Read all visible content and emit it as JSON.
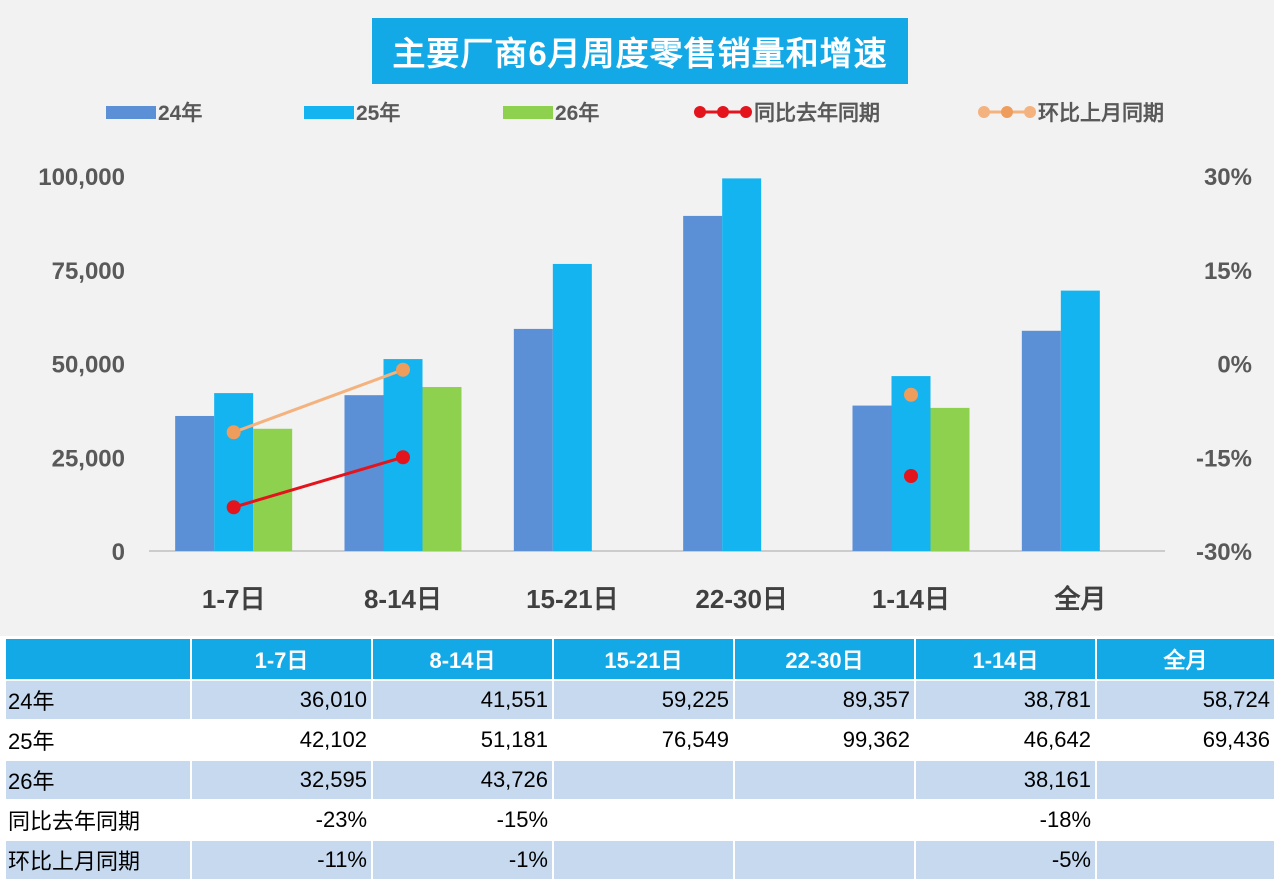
{
  "chart_data": {
    "type": "bar",
    "title": "主要厂商6月周度零售销量和增速",
    "categories": [
      "1-7日",
      "8-14日",
      "15-21日",
      "22-30日",
      "1-14日",
      "全月"
    ],
    "series": [
      {
        "name": "24年",
        "type": "bar",
        "color": "#5b8fd6",
        "values": [
          36010,
          41551,
          59225,
          89357,
          38781,
          58724
        ]
      },
      {
        "name": "25年",
        "type": "bar",
        "color": "#13b4ef",
        "values": [
          42102,
          51181,
          76549,
          99362,
          46642,
          69436
        ]
      },
      {
        "name": "26年",
        "type": "bar",
        "color": "#8dd14f",
        "values": [
          32595,
          43726,
          null,
          null,
          38161,
          null
        ]
      },
      {
        "name": "同比去年同期",
        "type": "line",
        "axis": "right",
        "color": "#e3141c",
        "values": [
          -0.23,
          -0.15,
          null,
          null,
          -0.18,
          null
        ]
      },
      {
        "name": "环比上月同期",
        "type": "line",
        "axis": "right",
        "color": "#f3b27e",
        "marker_color": "#ee9d5c",
        "values": [
          -0.11,
          -0.01,
          null,
          null,
          -0.05,
          null
        ]
      }
    ],
    "y_left": {
      "min": 0,
      "max": 100000,
      "ticks": [
        "0",
        "25,000",
        "50,000",
        "75,000",
        "100,000"
      ]
    },
    "y_right": {
      "min": -0.3,
      "max": 0.3,
      "ticks": [
        "-30%",
        "-15%",
        "0%",
        "15%",
        "30%"
      ]
    },
    "legend_position": "top",
    "grid": false
  },
  "table": {
    "headers": [
      "",
      "1-7日",
      "8-14日",
      "15-21日",
      "22-30日",
      "1-14日",
      "全月"
    ],
    "rows": [
      {
        "label": "24年",
        "cells": [
          "36,010",
          "41,551",
          "59,225",
          "89,357",
          "38,781",
          "58,724"
        ]
      },
      {
        "label": "25年",
        "cells": [
          "42,102",
          "51,181",
          "76,549",
          "99,362",
          "46,642",
          "69,436"
        ]
      },
      {
        "label": "26年",
        "cells": [
          "32,595",
          "43,726",
          "",
          "",
          "38,161",
          ""
        ]
      },
      {
        "label": "同比去年同期",
        "cells": [
          "-23%",
          "-15%",
          "",
          "",
          "-18%",
          ""
        ]
      },
      {
        "label": "环比上月同期",
        "cells": [
          "-11%",
          "-1%",
          "",
          "",
          "-5%",
          ""
        ]
      }
    ]
  }
}
